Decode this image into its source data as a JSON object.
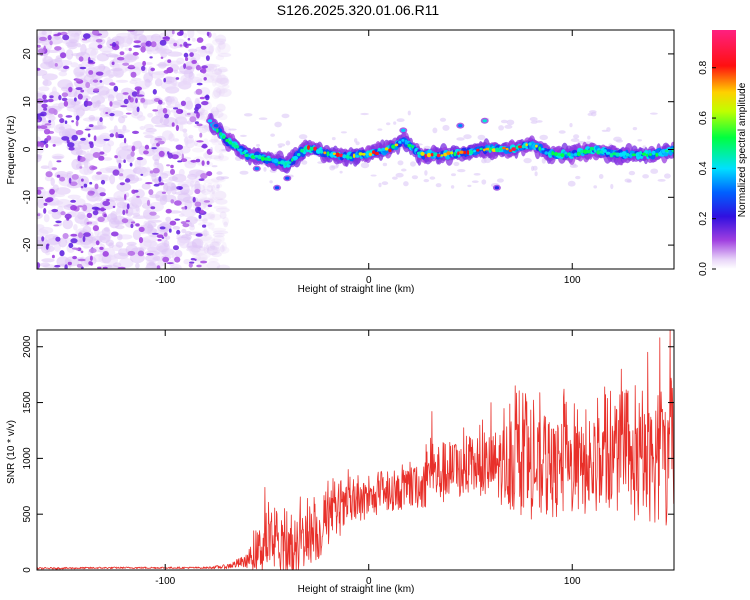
{
  "title": "S126.2025.320.01.06.R11",
  "chart_data": [
    {
      "type": "heatmap",
      "xlabel": "Height of straight line (km)",
      "ylabel": "Frequency (Hz)",
      "xlim": [
        -163,
        150
      ],
      "ylim": [
        -25,
        25
      ],
      "xticks": [
        -100,
        0,
        100
      ],
      "yticks": [
        -20,
        -10,
        0,
        10,
        20
      ],
      "xtick_labels": [
        "-100",
        "0",
        "100"
      ],
      "ytick_labels": [
        "-20",
        "-10",
        "0",
        "10",
        "20"
      ],
      "colorbar": {
        "label": "Normalized spectral amplitude",
        "range": [
          0,
          0.95
        ],
        "ticks": [
          0.0,
          0.2,
          0.4,
          0.6,
          0.8
        ],
        "tick_labels": [
          "0.0",
          "0.2",
          "0.4",
          "0.6",
          "0.8"
        ],
        "colormap": "rainbow (white-violet-blue-cyan-green-yellow-red-pink)"
      },
      "features": {
        "noise_region_x": [
          -163,
          -78
        ],
        "signal_start_x": -78,
        "signal_center_freq": 0,
        "signal_track": [
          {
            "x": -78,
            "f": 6
          },
          {
            "x": -70,
            "f": 2
          },
          {
            "x": -60,
            "f": -1
          },
          {
            "x": -50,
            "f": -2
          },
          {
            "x": -40,
            "f": -3
          },
          {
            "x": -30,
            "f": 0.5
          },
          {
            "x": -20,
            "f": -1
          },
          {
            "x": -10,
            "f": -1.5
          },
          {
            "x": 0,
            "f": -1
          },
          {
            "x": 10,
            "f": 0
          },
          {
            "x": 17,
            "f": 2
          },
          {
            "x": 25,
            "f": -1
          },
          {
            "x": 40,
            "f": -1
          },
          {
            "x": 55,
            "f": 0
          },
          {
            "x": 70,
            "f": 0
          },
          {
            "x": 80,
            "f": 1
          },
          {
            "x": 90,
            "f": -1
          },
          {
            "x": 100,
            "f": -1
          },
          {
            "x": 110,
            "f": 0
          },
          {
            "x": 120,
            "f": -1
          },
          {
            "x": 130,
            "f": -1
          },
          {
            "x": 140,
            "f": -1
          },
          {
            "x": 150,
            "f": 0
          }
        ],
        "peak_amplitude_regions_x": [
          [
            -30,
            15
          ],
          [
            25,
            85
          ]
        ]
      }
    },
    {
      "type": "line",
      "xlabel": "Height of straight line (km)",
      "ylabel": "SNR (10 * v/v)",
      "xlim": [
        -163,
        150
      ],
      "ylim": [
        0,
        2150
      ],
      "xticks": [
        -100,
        0,
        100
      ],
      "yticks": [
        0,
        500,
        1000,
        1500,
        2000
      ],
      "xtick_labels": [
        "-100",
        "0",
        "100"
      ],
      "ytick_labels": [
        "0",
        "500",
        "1000",
        "1500",
        "2000"
      ],
      "series": [
        {
          "name": "SNR",
          "color": "#e8302a",
          "envelope": {
            "x": [
              -163,
              -120,
              -80,
              -70,
              -60,
              -50,
              -45,
              -40,
              -35,
              -30,
              -25,
              -20,
              -10,
              0,
              10,
              20,
              27,
              30,
              40,
              50,
              60,
              70,
              80,
              90,
              100,
              110,
              120,
              130,
              140,
              145,
              150
            ],
            "base": [
              15,
              20,
              20,
              30,
              80,
              250,
              200,
              160,
              200,
              330,
              300,
              450,
              550,
              620,
              680,
              720,
              750,
              850,
              880,
              900,
              930,
              950,
              900,
              880,
              900,
              880,
              950,
              900,
              950,
              900,
              950
            ],
            "amp": [
              8,
              8,
              8,
              20,
              60,
              280,
              220,
              250,
              260,
              280,
              230,
              240,
              180,
              160,
              150,
              180,
              200,
              300,
              280,
              220,
              300,
              420,
              450,
              420,
              420,
              400,
              420,
              480,
              520,
              550,
              600
            ]
          },
          "notable_peaks": [
            {
              "x": -51,
              "y": 740
            },
            {
              "x": -21,
              "y": 700
            },
            {
              "x": -10,
              "y": 900
            },
            {
              "x": 31,
              "y": 1420
            },
            {
              "x": 60,
              "y": 1500
            },
            {
              "x": 72,
              "y": 1650
            },
            {
              "x": 77,
              "y": 1580
            },
            {
              "x": 96,
              "y": 1620
            },
            {
              "x": 116,
              "y": 1640
            },
            {
              "x": 124,
              "y": 1800
            },
            {
              "x": 137,
              "y": 1950
            },
            {
              "x": 143,
              "y": 2080
            },
            {
              "x": 148,
              "y": 2150
            }
          ]
        }
      ]
    }
  ]
}
